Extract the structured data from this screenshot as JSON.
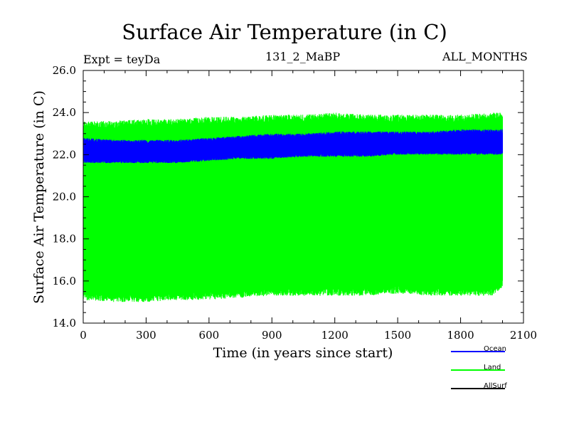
{
  "chart_data": {
    "type": "line",
    "title": "Surface Air Temperature (in C)",
    "experiment_label": "Expt = teyDa",
    "subtitle": "131_2_MaBP",
    "period_label": "ALL_MONTHS",
    "xlabel": "Time (in years since start)",
    "ylabel": "Surface Air Temperature (in C)",
    "xlim": [
      0,
      2100
    ],
    "ylim": [
      14.0,
      26.0
    ],
    "x_ticks": [
      0,
      300,
      600,
      900,
      1200,
      1500,
      1800,
      2100
    ],
    "y_ticks": [
      "14.0",
      "16.0",
      "18.0",
      "20.0",
      "22.0",
      "24.0",
      "26.0"
    ],
    "x_tick_labels": [
      "0",
      "300",
      "600",
      "900",
      "1200",
      "1500",
      "1800",
      "2100"
    ],
    "legend_position": "bottom-right, below plot",
    "series": [
      {
        "name": "Land",
        "color": "#00ff00",
        "x": [
          0,
          150,
          300,
          450,
          600,
          750,
          900,
          1050,
          1200,
          1350,
          1500,
          1650,
          1800,
          1950,
          2000
        ],
        "upper": [
          23.6,
          23.6,
          23.7,
          23.7,
          23.8,
          23.8,
          23.9,
          23.9,
          24.0,
          23.9,
          23.9,
          23.9,
          23.9,
          24.0,
          24.0
        ],
        "lower": [
          15.1,
          15.0,
          15.0,
          15.1,
          15.1,
          15.2,
          15.3,
          15.3,
          15.3,
          15.3,
          15.4,
          15.3,
          15.3,
          15.3,
          15.7
        ]
      },
      {
        "name": "Ocean",
        "color": "#0000ff",
        "x": [
          0,
          150,
          300,
          450,
          600,
          750,
          900,
          1050,
          1200,
          1350,
          1500,
          1650,
          1800,
          1950,
          2000
        ],
        "upper": [
          22.8,
          22.7,
          22.7,
          22.7,
          22.8,
          22.9,
          23.0,
          23.0,
          23.1,
          23.1,
          23.1,
          23.1,
          23.2,
          23.2,
          23.2
        ],
        "lower": [
          21.6,
          21.6,
          21.6,
          21.6,
          21.7,
          21.8,
          21.8,
          21.9,
          21.9,
          21.9,
          22.0,
          22.0,
          22.0,
          22.0,
          22.0
        ]
      },
      {
        "name": "AllSurf",
        "color": "#000000",
        "x": [],
        "upper": [],
        "lower": []
      }
    ]
  }
}
